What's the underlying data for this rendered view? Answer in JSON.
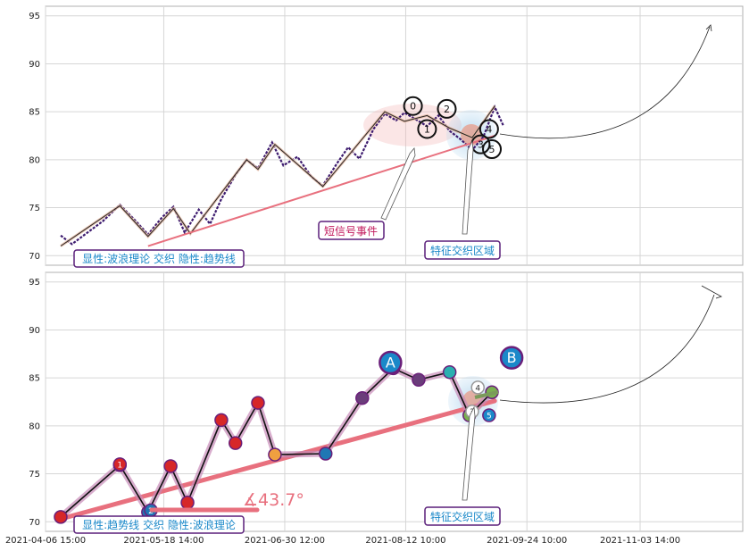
{
  "chart_data": [
    {
      "type": "line",
      "ylim": [
        69,
        96
      ],
      "yticks": [
        70,
        75,
        80,
        85,
        90,
        95
      ],
      "x_range": [
        "2021-04-06 15:00",
        "2021-12-10 00:00"
      ],
      "price_series": [
        [
          "2021-04-12",
          72.1
        ],
        [
          "2021-04-16",
          71.2
        ],
        [
          "2021-04-21",
          72.3
        ],
        [
          "2021-04-27",
          73.6
        ],
        [
          "2021-05-03",
          75.3
        ],
        [
          "2021-05-09",
          73.5
        ],
        [
          "2021-05-13",
          72.2
        ],
        [
          "2021-05-18",
          74.0
        ],
        [
          "2021-05-22",
          75.1
        ],
        [
          "2021-05-26",
          72.4
        ],
        [
          "2021-05-31",
          74.8
        ],
        [
          "2021-06-04",
          73.3
        ],
        [
          "2021-06-08",
          75.9
        ],
        [
          "2021-06-13",
          78.4
        ],
        [
          "2021-06-17",
          80.0
        ],
        [
          "2021-06-21",
          79.1
        ],
        [
          "2021-06-26",
          81.8
        ],
        [
          "2021-06-30",
          79.4
        ],
        [
          "2021-07-05",
          80.3
        ],
        [
          "2021-07-10",
          78.2
        ],
        [
          "2021-07-14",
          77.3
        ],
        [
          "2021-07-19",
          79.6
        ],
        [
          "2021-07-23",
          81.3
        ],
        [
          "2021-07-27",
          80.1
        ],
        [
          "2021-08-01",
          83.2
        ],
        [
          "2021-08-05",
          84.8
        ],
        [
          "2021-08-09",
          84.1
        ],
        [
          "2021-08-12",
          84.9
        ],
        [
          "2021-08-16",
          84.2
        ],
        [
          "2021-08-20",
          83.5
        ],
        [
          "2021-08-24",
          84.6
        ],
        [
          "2021-08-28",
          83.0
        ],
        [
          "2021-09-01",
          82.1
        ],
        [
          "2021-09-05",
          81.0
        ],
        [
          "2021-09-09",
          82.4
        ],
        [
          "2021-09-13",
          85.5
        ],
        [
          "2021-09-16",
          83.6
        ]
      ],
      "wave_line": [
        [
          "2021-04-12",
          71.0
        ],
        [
          "2021-05-03",
          75.2
        ],
        [
          "2021-05-13",
          72.0
        ],
        [
          "2021-05-22",
          74.9
        ],
        [
          "2021-05-28",
          72.3
        ],
        [
          "2021-06-17",
          80.0
        ],
        [
          "2021-06-21",
          79.0
        ],
        [
          "2021-06-27",
          81.6
        ],
        [
          "2021-07-14",
          77.2
        ],
        [
          "2021-08-05",
          85.0
        ],
        [
          "2021-08-12",
          84.0
        ],
        [
          "2021-08-20",
          84.6
        ],
        [
          "2021-08-28",
          83.3
        ],
        [
          "2021-09-05",
          82.3
        ],
        [
          "2021-09-13",
          85.6
        ]
      ],
      "trend_line": [
        [
          "2021-05-13",
          71.0
        ],
        [
          "2021-09-13",
          82.5
        ]
      ],
      "wave_points": [
        {
          "label": "0",
          "x": "2021-08-15",
          "y": 85.6
        },
        {
          "label": "1",
          "x": "2021-08-20",
          "y": 83.2
        },
        {
          "label": "2",
          "x": "2021-08-27",
          "y": 85.3
        },
        {
          "label": "3",
          "x": "2021-09-08",
          "y": 81.6
        },
        {
          "label": "4",
          "x": "2021-09-11",
          "y": 83.2
        },
        {
          "label": "5",
          "x": "2021-09-12",
          "y": 81.1
        }
      ],
      "annotations": {
        "short_signal": "短信号事件",
        "feature_zone": "特征交织区域",
        "legend": "显性:波浪理论 交织 隐性:趋势线"
      }
    },
    {
      "type": "line",
      "ylim": [
        69,
        96
      ],
      "yticks": [
        70,
        75,
        80,
        85,
        90,
        95
      ],
      "x_range": [
        "2021-04-06 15:00",
        "2021-12-10 00:00"
      ],
      "xticks": [
        "2021-04-06 15:00",
        "2021-05-18 14:00",
        "2021-06-30 12:00",
        "2021-08-12 10:00",
        "2021-09-24 10:00",
        "2021-11-03 14:00"
      ],
      "zigzag": [
        [
          "2021-04-12",
          70.5
        ],
        [
          "2021-05-03",
          75.9
        ],
        [
          "2021-05-13",
          71.0
        ],
        [
          "2021-05-21",
          75.8
        ],
        [
          "2021-05-27",
          72.0
        ],
        [
          "2021-06-08",
          80.6
        ],
        [
          "2021-06-13",
          78.2
        ],
        [
          "2021-06-21",
          82.4
        ],
        [
          "2021-06-27",
          77.0
        ],
        [
          "2021-07-15",
          77.1
        ],
        [
          "2021-07-28",
          82.9
        ],
        [
          "2021-08-08",
          86.0
        ],
        [
          "2021-08-17",
          84.8
        ],
        [
          "2021-08-28",
          85.6
        ],
        [
          "2021-09-04",
          81.1
        ],
        [
          "2021-09-12",
          83.5
        ]
      ],
      "trend_line": [
        [
          "2021-04-12",
          70.3
        ],
        [
          "2021-09-13",
          82.6
        ]
      ],
      "angle_label": "∡43.7°",
      "points": [
        {
          "label": "A",
          "x": "2021-08-07",
          "y": 86.6,
          "size": "large",
          "color": "#1a88c9"
        },
        {
          "label": "B",
          "x": "2021-09-19",
          "y": 87.1,
          "size": "large",
          "color": "#1a88c9"
        },
        {
          "label": "1",
          "x": "2021-05-03",
          "y": 76.0,
          "color": "#d62728"
        },
        {
          "label": "2",
          "x": "2021-05-14",
          "y": 71.2,
          "color": "#1f77b4"
        },
        {
          "label": "4",
          "x": "2021-09-07",
          "y": 84.0,
          "color": "#ffffff"
        },
        {
          "label": "3",
          "x": "2021-09-05",
          "y": 81.5,
          "color": "#ffffff"
        },
        {
          "label": "5",
          "x": "2021-09-11",
          "y": 81.1,
          "color": "#1a88c9"
        }
      ],
      "annotations": {
        "feature_zone": "特征交织区域",
        "legend": "显性:趋势线 交织 隐性:波浪理论"
      }
    }
  ]
}
